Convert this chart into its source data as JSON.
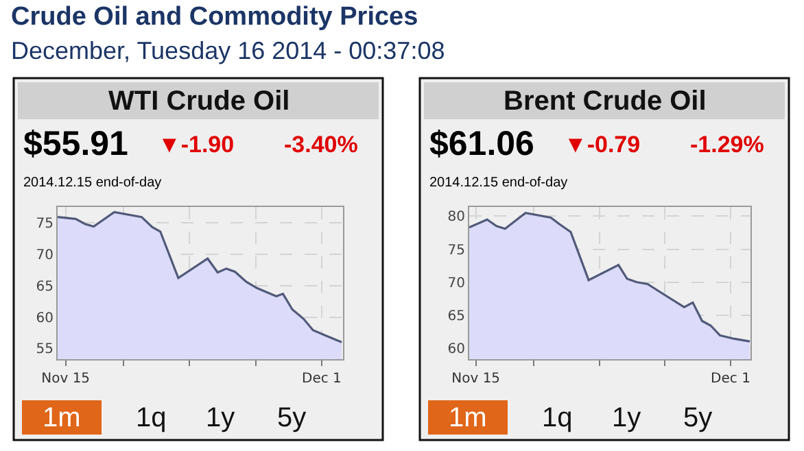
{
  "chart_data": [
    {
      "type": "other",
      "title": "Crude Oil and Commodity Prices",
      "subtitle": "December, Tuesday 16 2014 - 00:37:08"
    },
    {
      "type": "area",
      "title": "WTI Crude Oil",
      "color": "#525a7a",
      "x": [
        "2014-11-14T12:00",
        "2014-11-15T15:00",
        "2014-11-16T05:00",
        "2014-11-16T18:00",
        "2014-11-18T01:00",
        "2014-11-19T18:00",
        "2014-11-20T10:00",
        "2014-11-20T22:00",
        "2014-11-22T01:00",
        "2014-11-23T21:00",
        "2014-11-24T12:00",
        "2014-11-25T01:00",
        "2014-11-25T14:00",
        "2014-11-26T07:00",
        "2014-11-26T23:00",
        "2014-11-28T04:00",
        "2014-11-28T14:00",
        "2014-11-29T04:00",
        "2014-11-29T21:00",
        "2014-11-30T11:00",
        "2014-12-01T07:00",
        "2014-12-02T06:00"
      ],
      "values": [
        75.9,
        75.6,
        74.8,
        74.4,
        76.7,
        75.9,
        74.3,
        73.6,
        66.2,
        69.3,
        67.1,
        67.7,
        67.2,
        65.6,
        64.6,
        63.3,
        63.7,
        61.2,
        59.7,
        57.9,
        57.0,
        56.0
      ],
      "xlim": [
        "2014-11-14T12:00",
        "2014-12-02T08:00"
      ],
      "xticks": [
        {
          "value": "2014-11-15",
          "label": "Nov 15"
        },
        {
          "value": "2014-11-18T15:00",
          "label": null
        },
        {
          "value": "2014-11-22T18:00",
          "label": null
        },
        {
          "value": "2014-11-26T21:00",
          "label": null
        },
        {
          "value": "2014-12-01",
          "label": "Dec 1"
        }
      ],
      "ylim": [
        53.3,
        77.5
      ],
      "yticks": [
        55,
        60,
        65,
        70,
        75
      ],
      "grid": true,
      "annotations": [
        "$55.91",
        "▼-1.90",
        "-3.40%",
        "2014.12.15 end-of-day",
        "1m",
        "1q",
        "1y",
        "5y"
      ]
    },
    {
      "type": "area",
      "title": "Brent Crude Oil",
      "color": "#525a7a",
      "x": [
        "2014-11-14T14:00",
        "2014-11-15T17:00",
        "2014-11-16T07:00",
        "2014-11-16T20:00",
        "2014-11-18T03:00",
        "2014-11-19T17:00",
        "2014-11-20T06:00",
        "2014-11-20T23:00",
        "2014-11-22T02:00",
        "2014-11-23T23:00",
        "2014-11-24T12:00",
        "2014-11-25T02:00",
        "2014-11-25T19:00",
        "2014-11-26T12:00",
        "2014-11-28T02:00",
        "2014-11-28T15:00",
        "2014-11-29T05:00",
        "2014-11-29T18:00",
        "2014-11-30T08:00",
        "2014-12-01T05:00",
        "2014-12-02T05:00"
      ],
      "values": [
        78.3,
        79.5,
        78.5,
        78.1,
        80.5,
        79.8,
        78.8,
        77.6,
        70.3,
        72.6,
        70.5,
        70.0,
        69.7,
        68.6,
        66.2,
        66.9,
        64.1,
        63.4,
        61.9,
        61.4,
        61.0
      ],
      "xlim": [
        "2014-11-14T14:00",
        "2014-12-02T06:00"
      ],
      "xticks": [
        {
          "value": "2014-11-15",
          "label": "Nov 15"
        },
        {
          "value": "2014-11-18T15:00",
          "label": null
        },
        {
          "value": "2014-11-22T18:00",
          "label": null
        },
        {
          "value": "2014-11-26T21:00",
          "label": null
        },
        {
          "value": "2014-12-01",
          "label": "Dec 1"
        }
      ],
      "ylim": [
        58.3,
        81.4
      ],
      "yticks": [
        60,
        65,
        70,
        75,
        80
      ],
      "grid": true,
      "annotations": [
        "$61.06",
        "▼-0.79",
        "-1.29%",
        "2014.12.15 end-of-day",
        "1m",
        "1q",
        "1y",
        "5y"
      ]
    }
  ]
}
